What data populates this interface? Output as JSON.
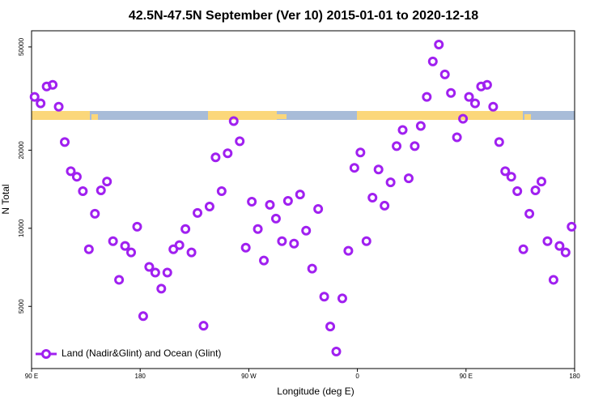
{
  "chart_data": {
    "type": "scatter",
    "title": "42.5N-47.5N September (Ver 10)   2015-01-01 to 2020-12-18",
    "x_label": "Longitude (deg E)",
    "y_label": "N Total",
    "log_y": true,
    "grid": false,
    "legend_position": "bottom-left",
    "xlim": [
      90,
      540
    ],
    "xticks": [
      {
        "value": 90,
        "label": "90 E"
      },
      180,
      {
        "value": 270,
        "label": "90 W"
      },
      {
        "value": 360,
        "label": "0"
      },
      {
        "value": 450,
        "label": "90 E"
      },
      {
        "value": 540,
        "label": "180"
      }
    ],
    "ylim": [
      2880,
      57700
    ],
    "yticks": [
      5000,
      10000,
      20000,
      50000
    ],
    "series": [
      {
        "name": "Land (Nadir&Glint) and Ocean (Glint)",
        "color": "#a020f0",
        "x": [
          92.5,
          97.5,
          102.5,
          107.5,
          112.5,
          117.5,
          122.5,
          127.5,
          132.5,
          137.5,
          142.5,
          147.5,
          152.5,
          157.5,
          162.5,
          167.5,
          172.5,
          177.5,
          182.5,
          187.5,
          192.5,
          197.5,
          202.5,
          207.5,
          212.5,
          217.5,
          222.5,
          227.5,
          232.5,
          237.5,
          242.5,
          247.5,
          252.5,
          257.5,
          262.5,
          267.5,
          272.5,
          277.5,
          282.5,
          287.5,
          292.5,
          297.5,
          302.5,
          307.5,
          312.5,
          317.5,
          322.5,
          327.5,
          332.5,
          337.5,
          342.5,
          347.5,
          352.5,
          357.5,
          362.5,
          367.5,
          372.5,
          377.5,
          382.5,
          387.5,
          392.5,
          397.5,
          402.5,
          407.5,
          412.5,
          417.5,
          422.5,
          427.5,
          432.5,
          437.5,
          442.5,
          447.5,
          452.5,
          457.5,
          462.5,
          467.5,
          472.5,
          477.5,
          482.5,
          487.5,
          492.5,
          497.5,
          502.5,
          507.5,
          512.5,
          517.5,
          522.5,
          527.5,
          532.5,
          537.5
        ],
        "values": [
          32100,
          30300,
          35200,
          35700,
          29400,
          21500,
          16600,
          15800,
          13900,
          8300,
          11380,
          14000,
          15140,
          8920,
          6330,
          8550,
          8070,
          10140,
          4585,
          7100,
          6750,
          5850,
          6750,
          8300,
          8610,
          9930,
          8070,
          11460,
          4210,
          12130,
          18760,
          13900,
          19450,
          25880,
          21650,
          8420,
          12660,
          9930,
          7510,
          12310,
          10900,
          8920,
          12750,
          8730,
          13500,
          9790,
          6990,
          11870,
          5450,
          4180,
          3350,
          5370,
          8190,
          17100,
          19590,
          8920,
          13120,
          16850,
          12220,
          15030,
          20740,
          23930,
          15580,
          20740,
          24800,
          32100,
          43950,
          51050,
          39180,
          33240,
          22430,
          26430,
          32100,
          30300,
          35200,
          35700,
          29400,
          21500,
          16600,
          15800,
          13900,
          8300,
          11380,
          14000,
          15140,
          8920,
          6330,
          8550,
          8070,
          10140
        ]
      }
    ]
  }
}
